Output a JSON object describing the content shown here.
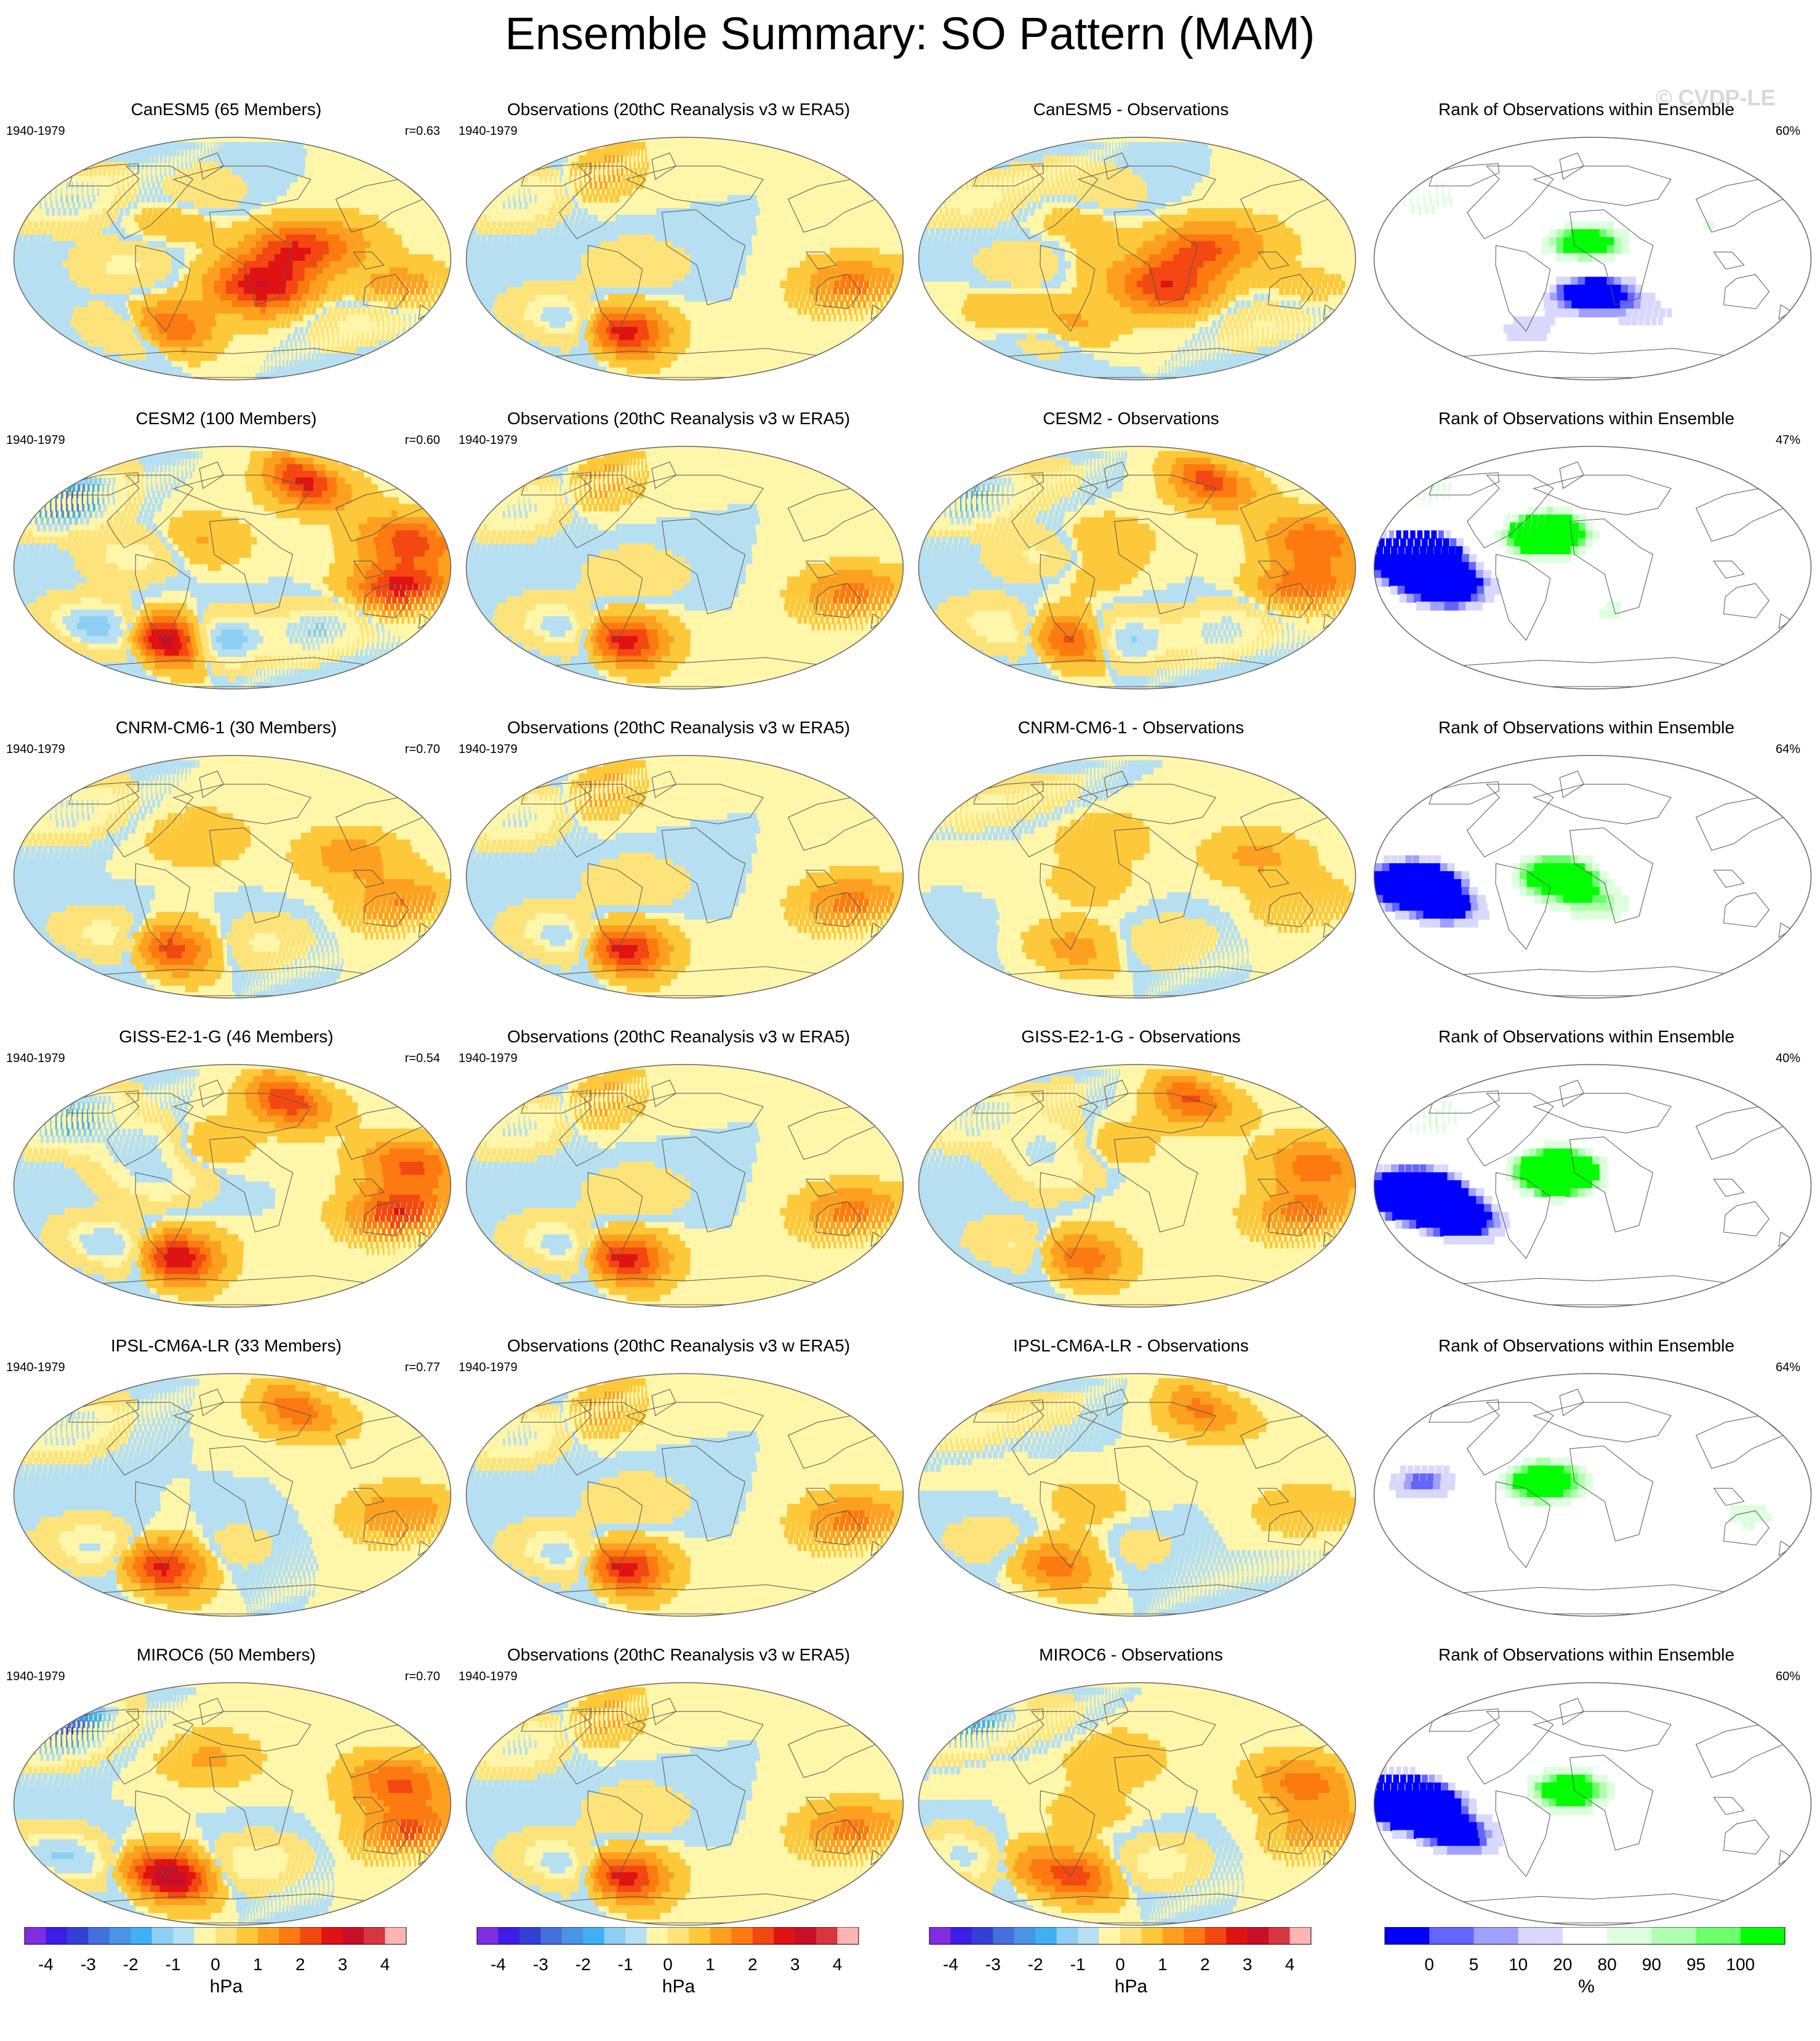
{
  "title": "Ensemble Summary: SO Pattern (MAM)",
  "watermark": "© CVDP-LE",
  "period": "1940-1979",
  "column_titles": {
    "observations": "Observations (20thC Reanalysis v3 w ERA5)",
    "rank": "Rank of Observations within Ensemble"
  },
  "rows": [
    {
      "model_title": "CanESM5 (65 Members)",
      "r": "r=0.63",
      "diff_title": "CanESM5 - Observations",
      "rank_pct": "60%",
      "field": {
        "pos": [
          [
            50,
            6,
            1.8
          ],
          [
            88,
            14,
            0.6
          ],
          [
            15,
            -18,
            1.2
          ],
          [
            30,
            -28,
            0.8
          ],
          [
            140,
            -22,
            0.8
          ],
          [
            35,
            -20,
            0.7
          ],
          [
            -60,
            -52,
            1.6
          ],
          [
            -50,
            30,
            0.4
          ]
        ],
        "neg": [
          [
            -150,
            45,
            1.6
          ],
          [
            -90,
            -5,
            0.6
          ],
          [
            -100,
            -55,
            0.8
          ],
          [
            -30,
            50,
            0.5
          ],
          [
            120,
            -48,
            0.7
          ]
        ],
        "rank_lo": [
          [
            0,
            -25,
            2.4
          ],
          [
            -65,
            -55,
            1.2
          ],
          [
            60,
            -45,
            1.0
          ]
        ],
        "rank_hi": [
          [
            -5,
            10,
            2.2
          ],
          [
            -150,
            45,
            1.3
          ],
          [
            100,
            25,
            1.0
          ]
        ]
      }
    },
    {
      "model_title": "CESM2 (100 Members)",
      "r": "r=0.60",
      "diff_title": "CESM2 - Observations",
      "rank_pct": "47%",
      "field": {
        "pos": [
          [
            80,
            65,
            2.2
          ],
          [
            150,
            20,
            1.8
          ],
          [
            140,
            -15,
            2.2
          ],
          [
            -60,
            -55,
            3.2
          ],
          [
            -30,
            20,
            0.6
          ]
        ],
        "neg": [
          [
            -155,
            50,
            3.6
          ],
          [
            -120,
            -45,
            2.0
          ],
          [
            -10,
            -55,
            2.2
          ],
          [
            80,
            -48,
            1.6
          ],
          [
            -80,
            10,
            0.8
          ]
        ],
        "rank_lo": [
          [
            -150,
            10,
            3.6
          ],
          [
            -120,
            -15,
            2.4
          ],
          [
            70,
            -50,
            1.0
          ]
        ],
        "rank_hi": [
          [
            -40,
            25,
            3.0
          ],
          [
            -155,
            55,
            1.2
          ],
          [
            20,
            -35,
            1.2
          ]
        ]
      }
    },
    {
      "model_title": "CNRM-CM6-1 (30 Members)",
      "r": "r=0.70",
      "diff_title": "CNRM-CM6-1 - Observations",
      "rank_pct": "64%",
      "field": {
        "pos": [
          [
            -60,
            -55,
            1.8
          ],
          [
            140,
            -20,
            1.0
          ],
          [
            100,
            15,
            0.8
          ],
          [
            -30,
            30,
            0.5
          ]
        ],
        "neg": [
          [
            -150,
            50,
            1.4
          ],
          [
            -110,
            -45,
            0.9
          ],
          [
            30,
            -50,
            0.6
          ]
        ],
        "rank_lo": [
          [
            -150,
            -5,
            3.0
          ],
          [
            -120,
            -25,
            1.5
          ],
          [
            70,
            -55,
            0.8
          ]
        ],
        "rank_hi": [
          [
            -30,
            0,
            2.4
          ],
          [
            10,
            -25,
            1.2
          ]
        ]
      }
    },
    {
      "model_title": "GISS-E2-1-G (46 Members)",
      "r": "r=0.54",
      "diff_title": "GISS-E2-1-G - Observations",
      "rank_pct": "40%",
      "field": {
        "pos": [
          [
            60,
            65,
            2.0
          ],
          [
            150,
            15,
            1.6
          ],
          [
            140,
            -20,
            2.0
          ],
          [
            -55,
            -55,
            2.6
          ],
          [
            -30,
            30,
            0.6
          ]
        ],
        "neg": [
          [
            -150,
            50,
            2.6
          ],
          [
            -80,
            30,
            1.4
          ],
          [
            -110,
            -45,
            1.6
          ],
          [
            -60,
            5,
            1.0
          ]
        ],
        "rank_lo": [
          [
            -150,
            -5,
            3.6
          ],
          [
            -110,
            -25,
            2.2
          ],
          [
            60,
            -55,
            1.0
          ]
        ],
        "rank_hi": [
          [
            -30,
            10,
            3.2
          ],
          [
            -150,
            50,
            1.4
          ]
        ]
      }
    },
    {
      "model_title": "IPSL-CM6A-LR (33 Members)",
      "r": "r=0.77",
      "diff_title": "IPSL-CM6A-LR - Observations",
      "rank_pct": "64%",
      "field": {
        "pos": [
          [
            70,
            65,
            1.4
          ],
          [
            140,
            -15,
            1.0
          ],
          [
            -70,
            -55,
            2.2
          ],
          [
            -20,
            -40,
            0.6
          ]
        ],
        "neg": [
          [
            -155,
            50,
            1.6
          ],
          [
            -120,
            -40,
            1.2
          ],
          [
            -10,
            -40,
            0.8
          ]
        ],
        "rank_lo": [
          [
            -140,
            10,
            1.6
          ],
          [
            -100,
            -55,
            0.8
          ]
        ],
        "rank_hi": [
          [
            -40,
            10,
            2.4
          ],
          [
            130,
            -15,
            1.2
          ]
        ]
      }
    },
    {
      "model_title": "MIROC6 (50 Members)",
      "r": "r=0.70",
      "diff_title": "MIROC6 - Observations",
      "rank_pct": "60%",
      "field": {
        "pos": [
          [
            140,
            15,
            1.6
          ],
          [
            150,
            -20,
            1.6
          ],
          [
            -60,
            -55,
            3.0
          ],
          [
            -20,
            35,
            0.6
          ]
        ],
        "neg": [
          [
            -160,
            55,
            3.6
          ],
          [
            -150,
            -40,
            1.6
          ],
          [
            20,
            -45,
            1.0
          ]
        ],
        "rank_lo": [
          [
            -150,
            0,
            3.2
          ],
          [
            -110,
            -25,
            1.8
          ],
          [
            -170,
            20,
            1.2
          ]
        ],
        "rank_hi": [
          [
            -20,
            10,
            2.2
          ],
          [
            -140,
            40,
            1.0
          ]
        ]
      }
    }
  ],
  "obs_field": {
    "pos": [
      [
        140,
        -20,
        1.2
      ],
      [
        -60,
        -55,
        2.4
      ],
      [
        -90,
        65,
        0.8
      ]
    ],
    "neg": [
      [
        -150,
        45,
        1.2
      ],
      [
        -110,
        -45,
        1.4
      ],
      [
        -40,
        -5,
        0.5
      ]
    ]
  },
  "colorbars": [
    {
      "unit": "hPa",
      "ticks": [
        "-4",
        "-3",
        "-2",
        "-1",
        "0",
        "1",
        "2",
        "3",
        "4"
      ]
    },
    {
      "unit": "hPa",
      "ticks": [
        "-4",
        "-3",
        "-2",
        "-1",
        "0",
        "1",
        "2",
        "3",
        "4"
      ]
    },
    {
      "unit": "hPa",
      "ticks": [
        "-4",
        "-3",
        "-2",
        "-1",
        "0",
        "1",
        "2",
        "3",
        "4"
      ]
    },
    {
      "unit": "%",
      "ticks": [
        "0",
        "5",
        "10",
        "20",
        "80",
        "90",
        "95",
        "100"
      ]
    }
  ],
  "colors": {
    "hpa_scale": [
      "#7f2de0",
      "#3e1ce8",
      "#3340d6",
      "#4470dc",
      "#4a93e6",
      "#40b0f4",
      "#8ccff2",
      "#b6e0f1",
      "#fff6aa",
      "#fde37a",
      "#fdc83a",
      "#fda020",
      "#fc7a10",
      "#f34812",
      "#e01313",
      "#c80f27",
      "#d7363f",
      "#ffb4b4"
    ],
    "rank_scale": [
      "#0000ff",
      "#6464ff",
      "#a0a0ff",
      "#d8d8ff",
      "#ffffff",
      "#ddffdd",
      "#b0ffb0",
      "#6cff6c",
      "#00ff00"
    ],
    "land_outline": "#555555"
  }
}
